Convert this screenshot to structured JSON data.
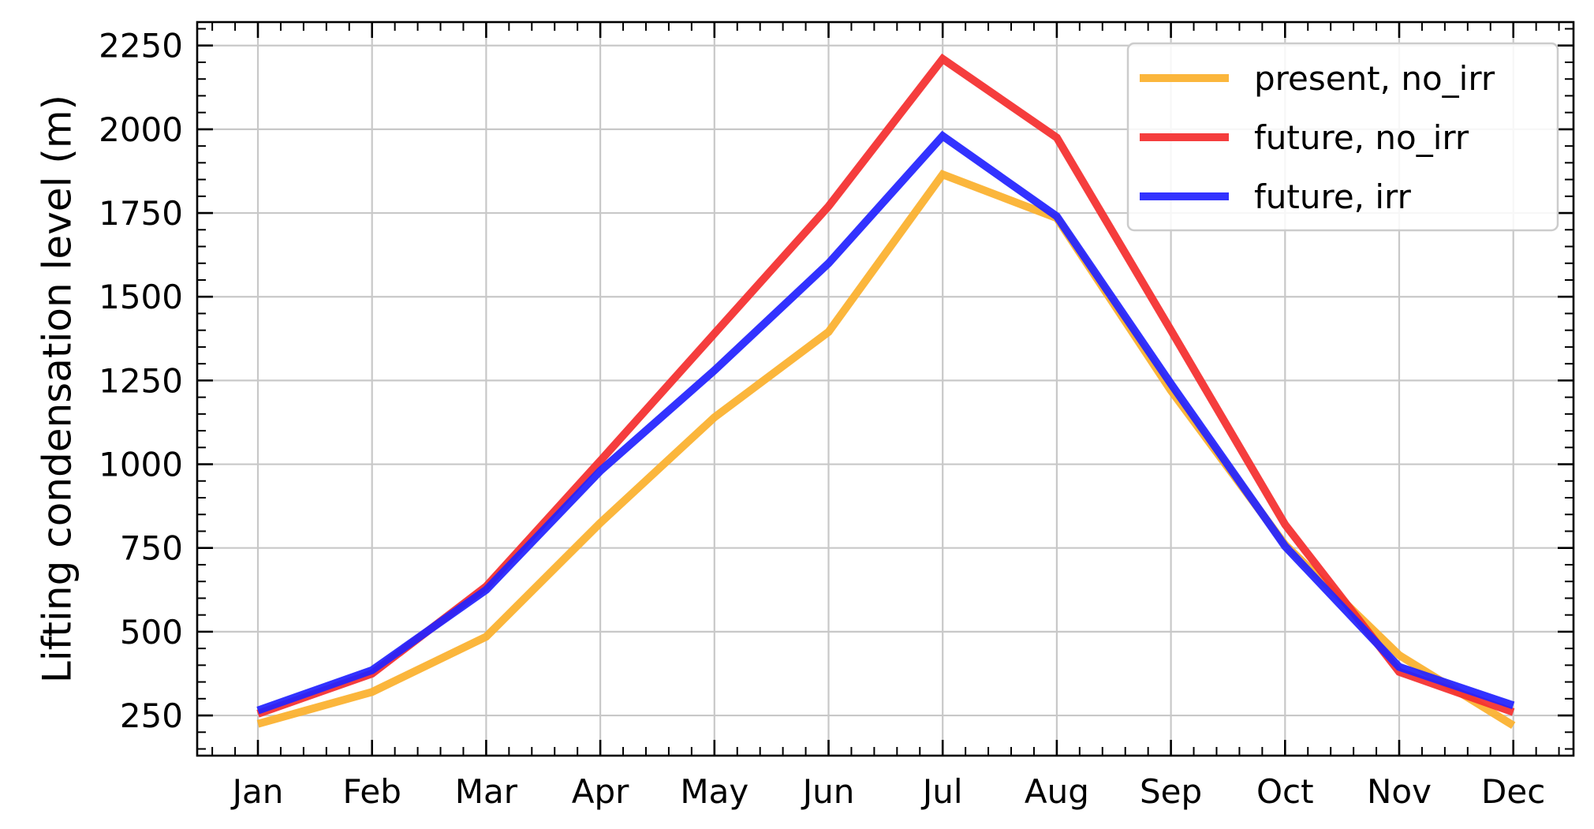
{
  "chart_data": {
    "type": "line",
    "title": "",
    "xlabel": "",
    "ylabel": "Lifting condensation level (m)",
    "categories": [
      "Jan",
      "Feb",
      "Mar",
      "Apr",
      "May",
      "Jun",
      "Jul",
      "Aug",
      "Sep",
      "Oct",
      "Nov",
      "Dec"
    ],
    "ylim": [
      130,
      2320
    ],
    "yticks": [
      250,
      500,
      750,
      1000,
      1250,
      1500,
      1750,
      2000,
      2250
    ],
    "grid": true,
    "legend_position": "top-right",
    "series": [
      {
        "name": "present, no_irr",
        "color": "#fbb02d",
        "values": [
          225,
          320,
          485,
          825,
          1140,
          1395,
          1865,
          1735,
          1220,
          760,
          430,
          220
        ]
      },
      {
        "name": "future, no_irr",
        "color": "#f42e2e",
        "values": [
          255,
          375,
          635,
          1010,
          1390,
          1770,
          2210,
          1975,
          1400,
          820,
          380,
          260
        ]
      },
      {
        "name": "future, irr",
        "color": "#2222ff",
        "values": [
          265,
          385,
          625,
          980,
          1280,
          1600,
          1980,
          1740,
          1240,
          755,
          395,
          280
        ]
      }
    ]
  }
}
